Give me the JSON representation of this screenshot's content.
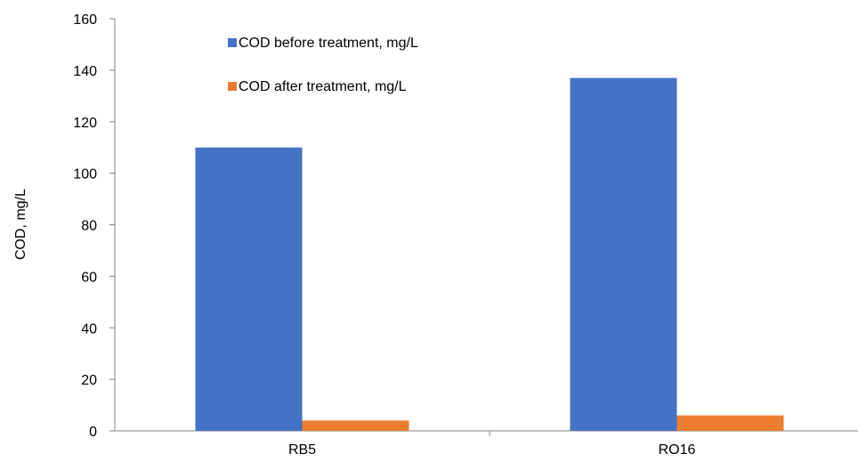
{
  "chart_data": {
    "type": "bar",
    "title": "",
    "xlabel": "",
    "ylabel": "COD, mg/L",
    "categories": [
      "RB5",
      "RO16"
    ],
    "series": [
      {
        "name": "COD before treatment, mg/L",
        "values": [
          110,
          137
        ],
        "color": "#4472C4"
      },
      {
        "name": "COD after treatment, mg/L",
        "values": [
          4,
          6
        ],
        "color": "#ED7D31"
      }
    ],
    "ylim": [
      0,
      160
    ],
    "yticks": [
      0,
      20,
      40,
      60,
      80,
      100,
      120,
      140,
      160
    ],
    "grid": false,
    "legend_position": "top-left"
  }
}
